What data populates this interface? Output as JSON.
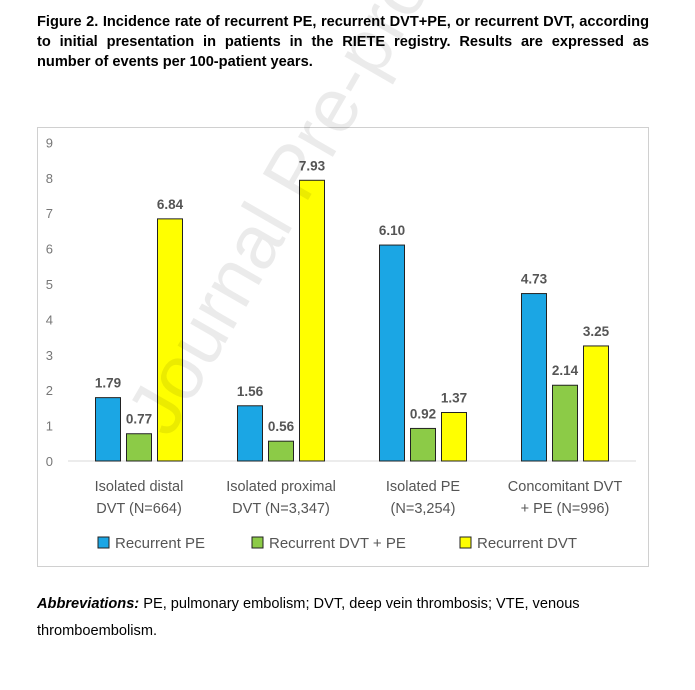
{
  "caption": "Figure 2. Incidence rate of recurrent PE, recurrent DVT+PE, or recurrent DVT, according to initial presentation in patients in the RIETE registry. Results are expressed as number of events per 100-patient years.",
  "abbreviations": {
    "label": "Abbreviations:",
    "text": " PE, pulmonary embolism; DVT, deep vein thrombosis; VTE, venous thromboembolism."
  },
  "watermark": "Journal Pre-proof",
  "chart_data": {
    "type": "bar",
    "categories": [
      [
        "Isolated distal",
        "DVT (N=664)"
      ],
      [
        "Isolated proximal",
        "DVT (N=3,347)"
      ],
      [
        "Isolated PE",
        "(N=3,254)"
      ],
      [
        "Concomitant DVT",
        "+ PE (N=996)"
      ]
    ],
    "series": [
      {
        "name": "Recurrent PE",
        "color": "#1BA6E4",
        "values": [
          1.79,
          1.56,
          6.1,
          4.73
        ],
        "labels": [
          "1.79",
          "1.56",
          "6.10",
          "4.73"
        ]
      },
      {
        "name": "Recurrent DVT + PE",
        "color": "#8CCB47",
        "values": [
          0.77,
          0.56,
          0.92,
          2.14
        ],
        "labels": [
          "0.77",
          "0.56",
          "0.92",
          "2.14"
        ]
      },
      {
        "name": "Recurrent DVT",
        "color": "#FFFF00",
        "values": [
          6.84,
          7.93,
          1.37,
          3.25
        ],
        "labels": [
          "6.84",
          "7.93",
          "1.37",
          "3.25"
        ]
      }
    ],
    "yticks": [
      "0",
      "1",
      "2",
      "3",
      "4",
      "5",
      "6",
      "7",
      "8",
      "9"
    ],
    "ylim": [
      0,
      9
    ],
    "grid": false,
    "legend_position": "bottom",
    "tick_color": "#777777",
    "label_color": "#555555",
    "edge_color": "#222222"
  }
}
